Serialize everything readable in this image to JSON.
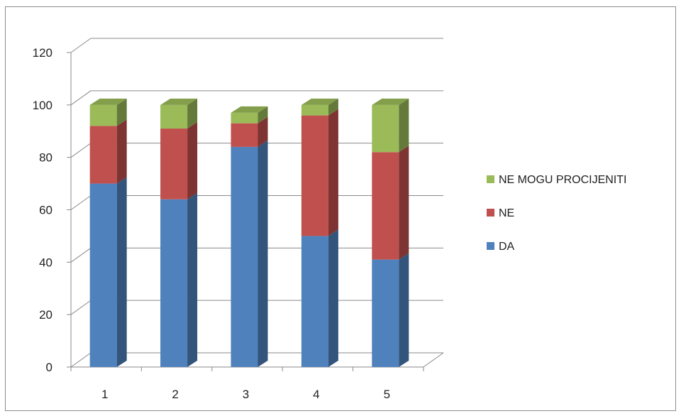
{
  "chart_data": {
    "type": "bar",
    "stacked": true,
    "three_d": true,
    "categories": [
      "1",
      "2",
      "3",
      "4",
      "5"
    ],
    "series": [
      {
        "name": "DA",
        "values": [
          70,
          64,
          84,
          50,
          41
        ],
        "color": "#4f81bd"
      },
      {
        "name": "NE",
        "values": [
          22,
          27,
          9,
          46,
          41
        ],
        "color": "#c0504d"
      },
      {
        "name": "NE MOGU PROCIJENITI",
        "values": [
          8,
          9,
          4,
          4,
          18
        ],
        "color": "#9bbb59"
      }
    ],
    "ylim": [
      0,
      120
    ],
    "yticks": [
      "0",
      "20",
      "40",
      "60",
      "80",
      "100",
      "120"
    ],
    "grid": true,
    "legend_position": "right",
    "legend_order": [
      "NE MOGU PROCIJENITI",
      "NE",
      "DA"
    ]
  }
}
